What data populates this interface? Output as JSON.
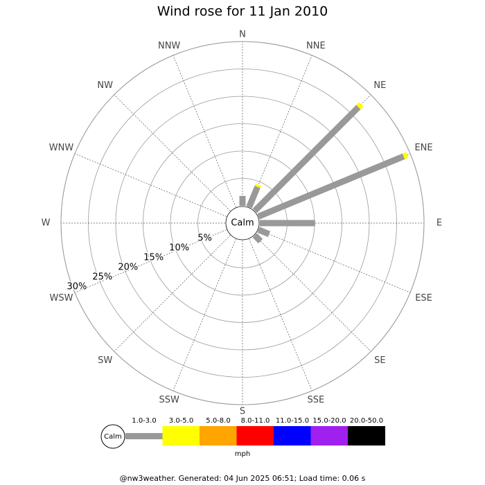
{
  "chart_data": {
    "type": "windrose",
    "title": "Wind rose for 11 Jan 2010",
    "categories": [
      "N",
      "NNE",
      "NE",
      "ENE",
      "E",
      "ESE",
      "SE",
      "SSE",
      "S",
      "SSW",
      "SW",
      "WSW",
      "W",
      "WNW",
      "NW",
      "NNW"
    ],
    "center_label": "Calm",
    "rlim": [
      0,
      30
    ],
    "rticks": [
      {
        "value": 5,
        "label": "5%"
      },
      {
        "value": 10,
        "label": "10%"
      },
      {
        "value": 15,
        "label": "15%"
      },
      {
        "value": 20,
        "label": "20%"
      },
      {
        "value": 25,
        "label": "25%"
      },
      {
        "value": 30,
        "label": "30%"
      }
    ],
    "series": [
      {
        "name": "1.0-3.0",
        "color": "#999999",
        "values": [
          1.8,
          4.0,
          26.8,
          28.7,
          10.1,
          2.1,
          1.5,
          0,
          0,
          0,
          0,
          0,
          0,
          0,
          0,
          0
        ]
      },
      {
        "name": "3.0-5.0",
        "color": "#ffff00",
        "values": [
          0,
          0.4,
          0.7,
          0.7,
          0,
          0,
          0,
          0,
          0,
          0,
          0,
          0,
          0,
          0,
          0,
          0
        ]
      },
      {
        "name": "5.0-8.0",
        "color": "#ffa500",
        "values": [
          0,
          0,
          0,
          0,
          0,
          0,
          0,
          0,
          0,
          0,
          0,
          0,
          0,
          0,
          0,
          0
        ]
      },
      {
        "name": "8.0-11.0",
        "color": "#ff0000",
        "values": [
          0,
          0,
          0,
          0,
          0,
          0,
          0,
          0,
          0,
          0,
          0,
          0,
          0,
          0,
          0,
          0
        ]
      },
      {
        "name": "11.0-15.0",
        "color": "#0000ff",
        "values": [
          0,
          0,
          0,
          0,
          0,
          0,
          0,
          0,
          0,
          0,
          0,
          0,
          0,
          0,
          0,
          0
        ]
      },
      {
        "name": "15.0-20.0",
        "color": "#a020f0",
        "values": [
          0,
          0,
          0,
          0,
          0,
          0,
          0,
          0,
          0,
          0,
          0,
          0,
          0,
          0,
          0,
          0
        ]
      },
      {
        "name": "20.0-50.0",
        "color": "#000000",
        "values": [
          0,
          0,
          0,
          0,
          0,
          0,
          0,
          0,
          0,
          0,
          0,
          0,
          0,
          0,
          0,
          0
        ]
      }
    ],
    "legend_calm": "Calm",
    "units": "mph",
    "footer": "@nw3weather. Generated: 04 Jun 2025 06:51; Load time: 0.06 s"
  }
}
